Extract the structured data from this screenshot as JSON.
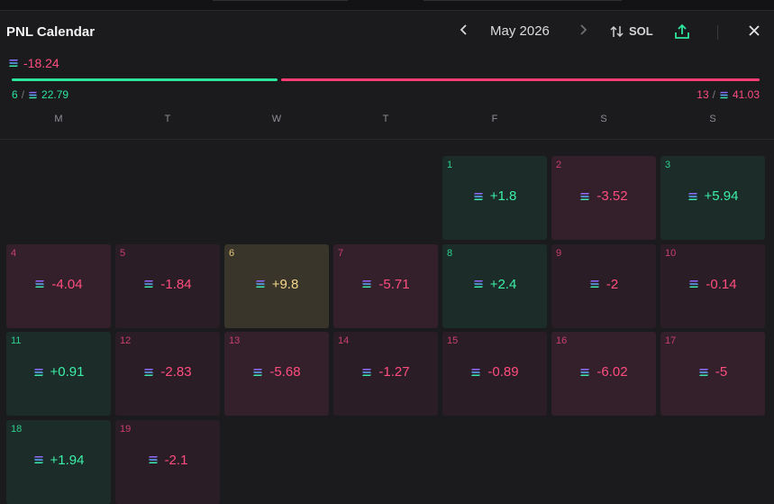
{
  "header": {
    "title": "PNL Calendar",
    "month_label": "May 2026",
    "unit_label": "SOL"
  },
  "summary": {
    "total": "-18.24",
    "win_days": "6",
    "win_amount": "22.79",
    "loss_days": "13",
    "loss_amount": "41.03",
    "slash": "/"
  },
  "weekdays": [
    "M",
    "T",
    "W",
    "T",
    "F",
    "S",
    "S"
  ],
  "days": [
    {
      "day": "1",
      "value": "+1.8",
      "kind": "win"
    },
    {
      "day": "2",
      "value": "-3.52",
      "kind": "loss-deep"
    },
    {
      "day": "3",
      "value": "+5.94",
      "kind": "win"
    },
    {
      "day": "4",
      "value": "-4.04",
      "kind": "loss-deep"
    },
    {
      "day": "5",
      "value": "-1.84",
      "kind": "loss"
    },
    {
      "day": "6",
      "value": "+9.8",
      "kind": "best"
    },
    {
      "day": "7",
      "value": "-5.71",
      "kind": "loss-deep"
    },
    {
      "day": "8",
      "value": "+2.4",
      "kind": "win"
    },
    {
      "day": "9",
      "value": "-2",
      "kind": "loss"
    },
    {
      "day": "10",
      "value": "-0.14",
      "kind": "loss"
    },
    {
      "day": "11",
      "value": "+0.91",
      "kind": "win"
    },
    {
      "day": "12",
      "value": "-2.83",
      "kind": "loss"
    },
    {
      "day": "13",
      "value": "-5.68",
      "kind": "loss-deep"
    },
    {
      "day": "14",
      "value": "-1.27",
      "kind": "loss"
    },
    {
      "day": "15",
      "value": "-0.89",
      "kind": "loss"
    },
    {
      "day": "16",
      "value": "-6.02",
      "kind": "loss-deep"
    },
    {
      "day": "17",
      "value": "-5",
      "kind": "loss-deep"
    },
    {
      "day": "18",
      "value": "+1.94",
      "kind": "win"
    },
    {
      "day": "19",
      "value": "-2.1",
      "kind": "loss"
    }
  ],
  "first_weekday_offset": 4,
  "colors": {
    "win": "#2ee59d",
    "loss": "#ff3d73",
    "best": "#f5d68a",
    "background": "#1b1b1e"
  },
  "icons": {
    "currency": "solana-icon",
    "prev": "chevron-left-icon",
    "next": "chevron-right-icon",
    "toggle": "swap-vertical-icon",
    "share": "share-icon",
    "close": "close-icon"
  }
}
